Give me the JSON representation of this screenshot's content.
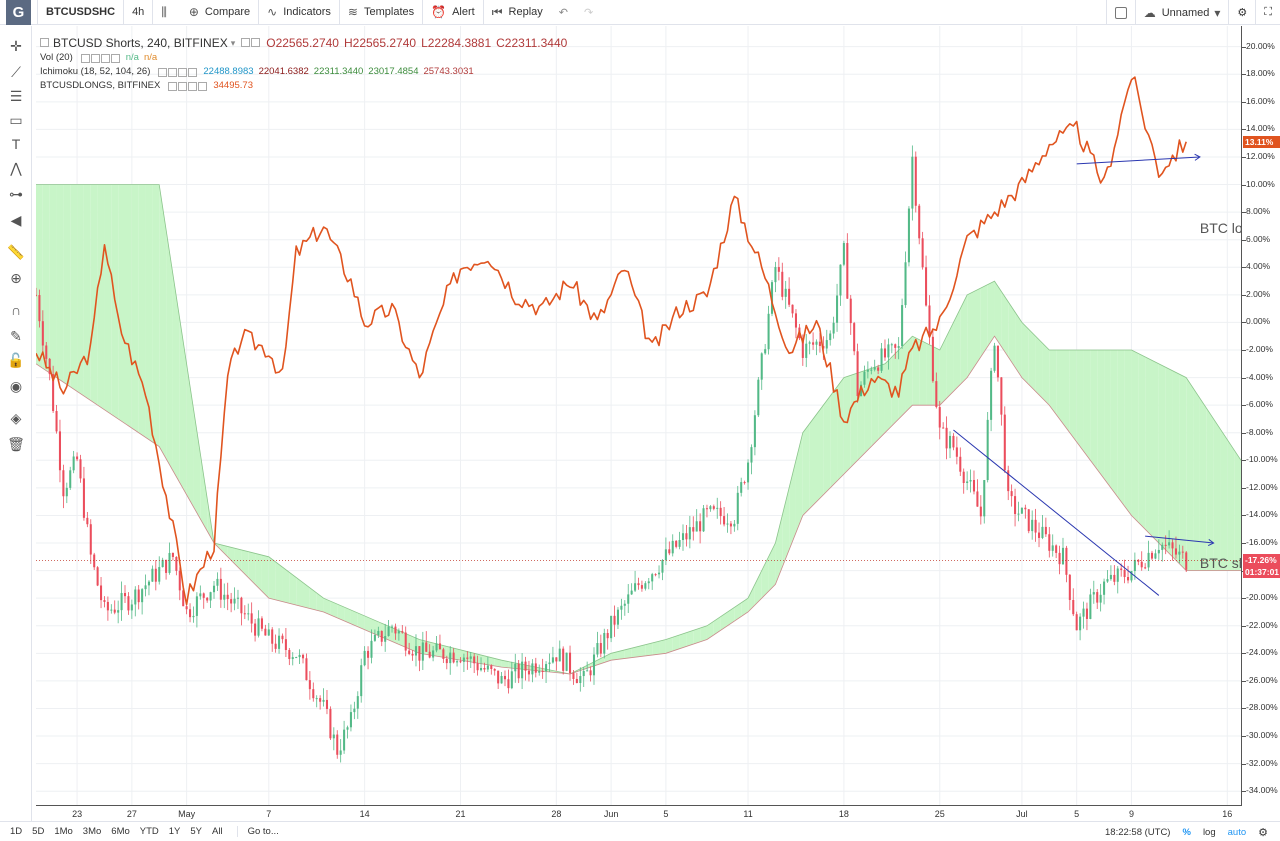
{
  "toolbar": {
    "symbol": "BTCUSDSHC",
    "interval": "4h",
    "compare": "Compare",
    "indicators": "Indicators",
    "templates": "Templates",
    "alert": "Alert",
    "replay": "Replay",
    "layout_name": "Unnamed",
    "logo": "G"
  },
  "legend": {
    "main_title": "BTCUSD Shorts, 240, BITFINEX",
    "ohlc": {
      "o": "O22565.2740",
      "h": "H22565.2740",
      "l": "L22284.3881",
      "c": "C22311.3440"
    },
    "vol_label": "Vol (20)",
    "vol_values": [
      "n/a",
      "n/a"
    ],
    "ichimoku_label": "Ichimoku (18, 52, 104, 26)",
    "ichimoku_values": [
      "22488.8983",
      "22041.6382",
      "22311.3440",
      "23017.4854",
      "25743.3031"
    ],
    "compare_label": "BTCUSDLONGS, BITFINEX",
    "compare_value": "34495.73"
  },
  "annotations": {
    "longs": "BTC longs",
    "shorts": "BTC shorts"
  },
  "price_axis": {
    "labels": [
      "20.00%",
      "18.00%",
      "16.00%",
      "14.00%",
      "12.00%",
      "10.00%",
      "8.00%",
      "6.00%",
      "4.00%",
      "2.00%",
      "0.00%",
      "-2.00%",
      "-4.00%",
      "-6.00%",
      "-8.00%",
      "-10.00%",
      "-12.00%",
      "-14.00%",
      "-16.00%",
      "-18.00%",
      "-20.00%",
      "-22.00%",
      "-24.00%",
      "-26.00%",
      "-28.00%",
      "-30.00%",
      "-32.00%",
      "-34.00%"
    ],
    "badge_longs": "13.11%",
    "badge_shorts": "-17.26%",
    "badge_countdown": "01:37:01"
  },
  "time_axis": {
    "labels": [
      "23",
      "27",
      "May",
      "7",
      "14",
      "21",
      "28",
      "Jun",
      "5",
      "11",
      "18",
      "25",
      "Jul",
      "5",
      "9",
      "16"
    ]
  },
  "bottom": {
    "ranges": [
      "1D",
      "5D",
      "1Mo",
      "3Mo",
      "6Mo",
      "YTD",
      "1Y",
      "5Y",
      "All"
    ],
    "goto": "Go to...",
    "time": "18:22:58 (UTC)",
    "pct": "%",
    "log": "log",
    "auto": "auto"
  },
  "colors": {
    "up": "#53b987",
    "down": "#eb4d5c",
    "longs": "#e0541f",
    "cloud_bull": "#c8f5c8",
    "cloud_bear": "#fcd4d4",
    "trendline": "#2a37b0",
    "close_line": "#c0392b"
  },
  "chart_data": {
    "type": "line",
    "ylabel": "",
    "ylim": [
      -35,
      21.5
    ],
    "x_range": [
      "2018-04-20",
      "2018-07-17"
    ],
    "x_ticks": [
      "Apr 23",
      "Apr 27",
      "May 1",
      "May 7",
      "May 14",
      "May 21",
      "May 28",
      "Jun 1",
      "Jun 5",
      "Jun 11",
      "Jun 18",
      "Jun 25",
      "Jul 1",
      "Jul 5",
      "Jul 9",
      "Jul 16"
    ],
    "grid": true,
    "series": [
      {
        "name": "BTCUSD Shorts, 240, BITFINEX",
        "style": "candles",
        "points": [
          [
            "2018-04-20",
            2
          ],
          [
            "2018-04-21",
            -4
          ],
          [
            "2018-04-22",
            -12
          ],
          [
            "2018-04-23",
            -10
          ],
          [
            "2018-04-24",
            -17
          ],
          [
            "2018-04-25",
            -21
          ],
          [
            "2018-04-27",
            -20
          ],
          [
            "2018-04-29",
            -18
          ],
          [
            "2018-04-30",
            -17
          ],
          [
            "2018-05-01",
            -21
          ],
          [
            "2018-05-03",
            -19
          ],
          [
            "2018-05-05",
            -21
          ],
          [
            "2018-05-07",
            -23
          ],
          [
            "2018-05-09",
            -24
          ],
          [
            "2018-05-11",
            -28
          ],
          [
            "2018-05-12",
            -31
          ],
          [
            "2018-05-13",
            -29
          ],
          [
            "2018-05-14",
            -24
          ],
          [
            "2018-05-16",
            -22
          ],
          [
            "2018-05-18",
            -24
          ],
          [
            "2018-05-21",
            -24
          ],
          [
            "2018-05-24",
            -26
          ],
          [
            "2018-05-26",
            -25
          ],
          [
            "2018-05-28",
            -24
          ],
          [
            "2018-05-30",
            -26
          ],
          [
            "2018-06-01",
            -22
          ],
          [
            "2018-06-03",
            -19
          ],
          [
            "2018-06-05",
            -17
          ],
          [
            "2018-06-08",
            -14
          ],
          [
            "2018-06-10",
            -14
          ],
          [
            "2018-06-11",
            -10
          ],
          [
            "2018-06-13",
            4
          ],
          [
            "2018-06-15",
            -2
          ],
          [
            "2018-06-17",
            -1
          ],
          [
            "2018-06-18",
            5
          ],
          [
            "2018-06-19",
            -5
          ],
          [
            "2018-06-20",
            -3
          ],
          [
            "2018-06-22",
            -2
          ],
          [
            "2018-06-23",
            12
          ],
          [
            "2018-06-24",
            1
          ],
          [
            "2018-06-25",
            -8
          ],
          [
            "2018-06-26",
            -9
          ],
          [
            "2018-06-28",
            -14
          ],
          [
            "2018-06-29",
            -1
          ],
          [
            "2018-06-30",
            -13
          ],
          [
            "2018-07-02",
            -15
          ],
          [
            "2018-07-04",
            -17
          ],
          [
            "2018-07-05",
            -22
          ],
          [
            "2018-07-07",
            -19
          ],
          [
            "2018-07-09",
            -18
          ],
          [
            "2018-07-11",
            -16
          ],
          [
            "2018-07-13",
            -17.26
          ]
        ]
      },
      {
        "name": "BTCUSDLONGS, BITFINEX",
        "style": "line",
        "points": [
          [
            "2018-04-20",
            -2
          ],
          [
            "2018-04-22",
            -5
          ],
          [
            "2018-04-24",
            -2
          ],
          [
            "2018-04-25",
            6
          ],
          [
            "2018-04-26",
            0
          ],
          [
            "2018-04-28",
            -5
          ],
          [
            "2018-04-29",
            -10
          ],
          [
            "2018-04-30",
            -15
          ],
          [
            "2018-05-01",
            -20
          ],
          [
            "2018-05-03",
            -16
          ],
          [
            "2018-05-04",
            -4
          ],
          [
            "2018-05-05",
            -1
          ],
          [
            "2018-05-07",
            -2
          ],
          [
            "2018-05-08",
            -4
          ],
          [
            "2018-05-09",
            5
          ],
          [
            "2018-05-11",
            7
          ],
          [
            "2018-05-13",
            3
          ],
          [
            "2018-05-14",
            0
          ],
          [
            "2018-05-16",
            1
          ],
          [
            "2018-05-18",
            -4
          ],
          [
            "2018-05-20",
            2
          ],
          [
            "2018-05-21",
            4
          ],
          [
            "2018-05-23",
            5
          ],
          [
            "2018-05-25",
            2
          ],
          [
            "2018-05-27",
            1
          ],
          [
            "2018-05-29",
            3
          ],
          [
            "2018-05-31",
            0
          ],
          [
            "2018-06-02",
            4
          ],
          [
            "2018-06-04",
            -2
          ],
          [
            "2018-06-06",
            1
          ],
          [
            "2018-06-08",
            2
          ],
          [
            "2018-06-10",
            9
          ],
          [
            "2018-06-12",
            4
          ],
          [
            "2018-06-14",
            -2
          ],
          [
            "2018-06-16",
            0
          ],
          [
            "2018-06-18",
            -7
          ],
          [
            "2018-06-20",
            -4
          ],
          [
            "2018-06-22",
            -5
          ],
          [
            "2018-06-23",
            -2
          ],
          [
            "2018-06-25",
            0
          ],
          [
            "2018-06-27",
            6
          ],
          [
            "2018-06-29",
            8
          ],
          [
            "2018-07-01",
            10
          ],
          [
            "2018-07-03",
            13
          ],
          [
            "2018-07-05",
            14
          ],
          [
            "2018-07-07",
            10
          ],
          [
            "2018-07-09",
            18
          ],
          [
            "2018-07-11",
            11
          ],
          [
            "2018-07-13",
            13.11
          ]
        ]
      },
      {
        "name": "Ichimoku (18, 52, 104, 26)",
        "style": "cloud",
        "span_a": [
          [
            "2018-04-20",
            10
          ],
          [
            "2018-04-29",
            10
          ],
          [
            "2018-05-03",
            -16
          ],
          [
            "2018-05-07",
            -17
          ],
          [
            "2018-05-11",
            -20
          ],
          [
            "2018-05-18",
            -23
          ],
          [
            "2018-05-24",
            -24.5
          ],
          [
            "2018-05-29",
            -25.5
          ],
          [
            "2018-06-01",
            -24
          ],
          [
            "2018-06-05",
            -23
          ],
          [
            "2018-06-08",
            -22
          ],
          [
            "2018-06-11",
            -20
          ],
          [
            "2018-06-13",
            -16
          ],
          [
            "2018-06-15",
            -8
          ],
          [
            "2018-06-18",
            -4
          ],
          [
            "2018-06-21",
            -3
          ],
          [
            "2018-06-23",
            -1
          ],
          [
            "2018-06-25",
            -2
          ],
          [
            "2018-06-27",
            2
          ],
          [
            "2018-06-29",
            3
          ],
          [
            "2018-07-01",
            0
          ],
          [
            "2018-07-03",
            -2
          ],
          [
            "2018-07-09",
            -2
          ],
          [
            "2018-07-13",
            -4
          ],
          [
            "2018-07-17",
            -10
          ]
        ],
        "span_b": [
          [
            "2018-04-20",
            -3
          ],
          [
            "2018-04-29",
            -9
          ],
          [
            "2018-05-03",
            -16
          ],
          [
            "2018-05-07",
            -20
          ],
          [
            "2018-05-11",
            -21
          ],
          [
            "2018-05-18",
            -24
          ],
          [
            "2018-05-24",
            -25
          ],
          [
            "2018-05-29",
            -25.5
          ],
          [
            "2018-06-01",
            -24.5
          ],
          [
            "2018-06-05",
            -24
          ],
          [
            "2018-06-08",
            -23
          ],
          [
            "2018-06-11",
            -21
          ],
          [
            "2018-06-13",
            -19
          ],
          [
            "2018-06-15",
            -14
          ],
          [
            "2018-06-18",
            -11
          ],
          [
            "2018-06-21",
            -8
          ],
          [
            "2018-06-23",
            -6
          ],
          [
            "2018-06-25",
            -6
          ],
          [
            "2018-06-27",
            -4
          ],
          [
            "2018-06-29",
            -1
          ],
          [
            "2018-07-01",
            -4
          ],
          [
            "2018-07-03",
            -6
          ],
          [
            "2018-07-09",
            -14
          ],
          [
            "2018-07-13",
            -18
          ],
          [
            "2018-07-17",
            -18
          ]
        ]
      }
    ],
    "last_values": {
      "BTCUSDLONGS, BITFINEX": 13.11,
      "BTCUSD Shorts, 240, BITFINEX": -17.26
    }
  }
}
